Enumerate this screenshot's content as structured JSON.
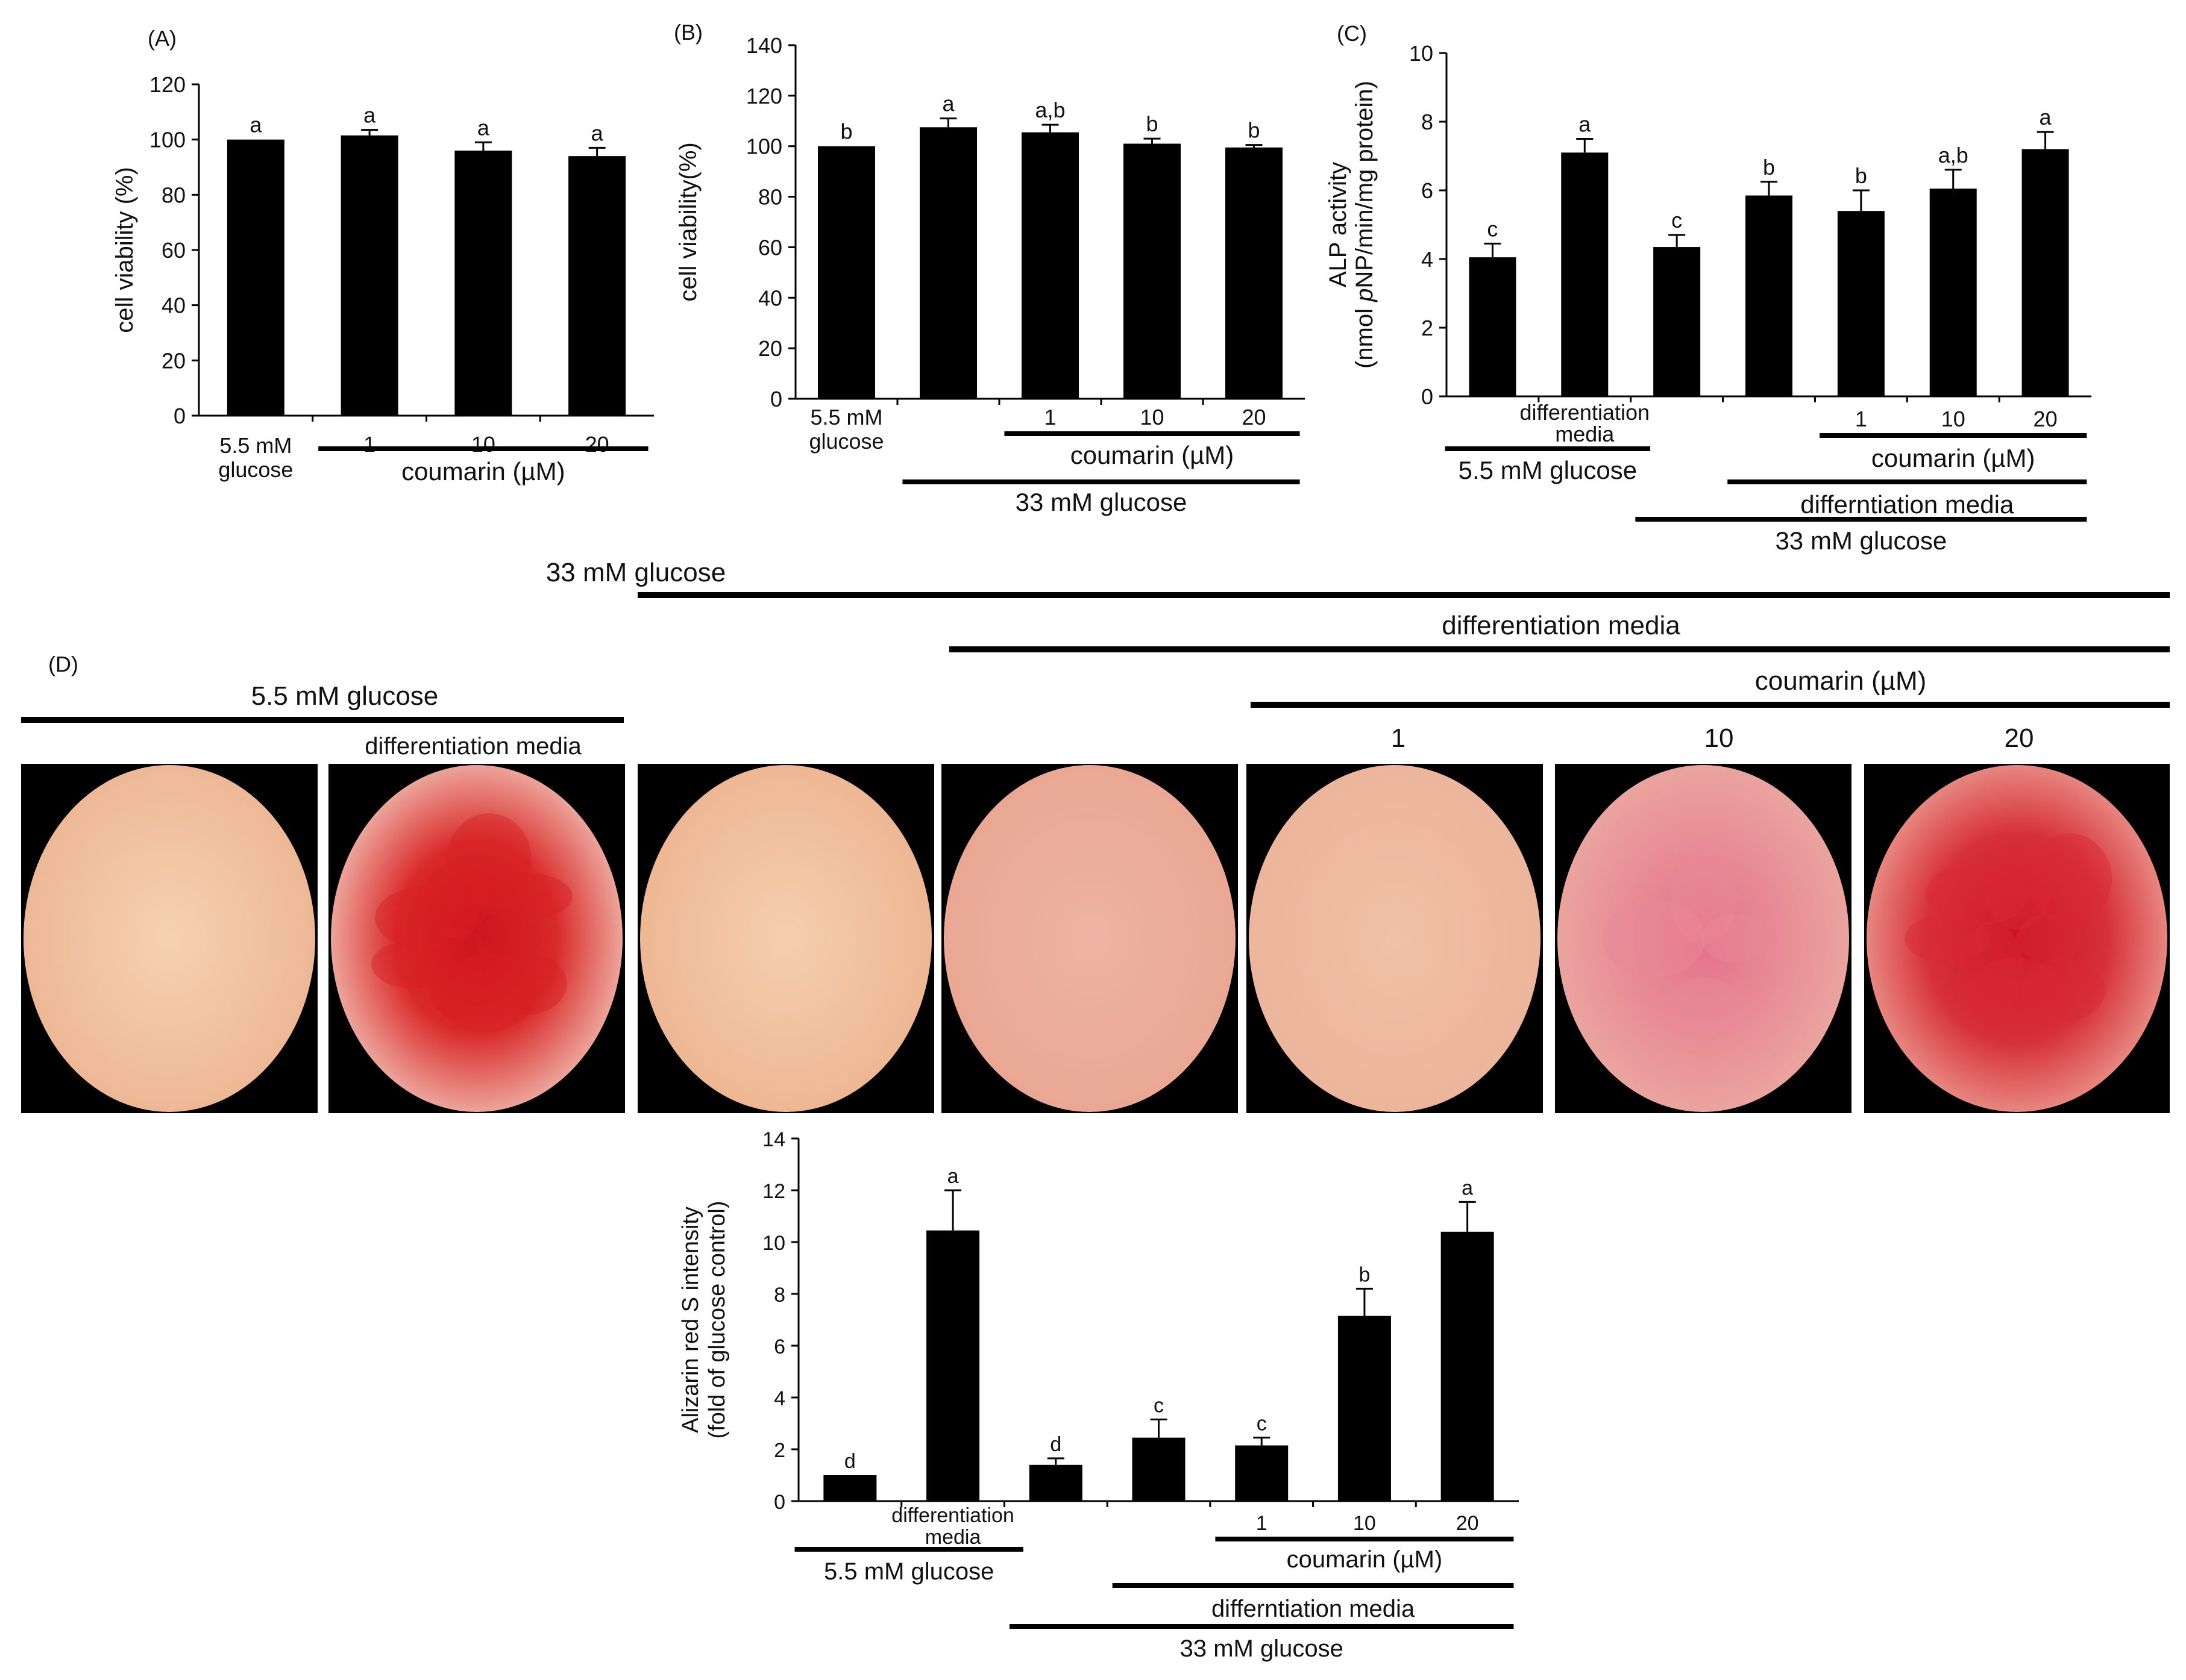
{
  "panels": {
    "A": "(A)",
    "B": "(B)",
    "C": "(C)",
    "D": "(D)"
  },
  "chart_data": [
    {
      "id": "A",
      "type": "bar",
      "ylabel": "cell viability (%)",
      "ylim": [
        0,
        120
      ],
      "yticks": [
        0,
        20,
        40,
        60,
        80,
        100,
        120
      ],
      "categories": [
        "5.5 mM glucose",
        "1",
        "10",
        "20"
      ],
      "values": [
        100,
        101.5,
        96,
        94
      ],
      "errors": [
        0,
        2,
        3,
        3
      ],
      "letters": [
        "a",
        "a",
        "a",
        "a"
      ],
      "brackets": [
        {
          "label": "coumarin (µM)",
          "from": 1,
          "to": 3
        }
      ]
    },
    {
      "id": "B",
      "type": "bar",
      "ylabel": "cell viability(%)",
      "ylim": [
        0,
        140
      ],
      "yticks": [
        0,
        20,
        40,
        60,
        80,
        100,
        120,
        140
      ],
      "categories": [
        "5.5 mM glucose",
        "",
        "1",
        "10",
        "20"
      ],
      "values": [
        100,
        107.5,
        105.5,
        101,
        99.5
      ],
      "errors": [
        0,
        3.5,
        3,
        2,
        1
      ],
      "letters": [
        "b",
        "a",
        "a,b",
        "b",
        "b"
      ],
      "brackets": [
        {
          "label": "coumarin (µM)",
          "from": 2,
          "to": 4
        },
        {
          "label": "33 mM glucose",
          "from": 1,
          "to": 4
        }
      ]
    },
    {
      "id": "C",
      "type": "bar",
      "ylabel": "ALP activity (nmol pNP/min/mg protein)",
      "ylabel_line1": "ALP activity",
      "ylabel_line2_pre": "(nmol ",
      "ylabel_line2_italic": "p",
      "ylabel_line2_post": "NP/min/mg protein)",
      "ylim": [
        0,
        10
      ],
      "yticks": [
        0,
        2,
        4,
        6,
        8,
        10
      ],
      "categories": [
        "",
        "differentiation media",
        "",
        "",
        "1",
        "10",
        "20"
      ],
      "values": [
        4.05,
        7.1,
        4.35,
        5.85,
        5.4,
        6.05,
        7.2
      ],
      "errors": [
        0.4,
        0.4,
        0.35,
        0.4,
        0.6,
        0.55,
        0.5
      ],
      "letters": [
        "c",
        "a",
        "c",
        "b",
        "b",
        "a,b",
        "a"
      ],
      "brackets": [
        {
          "label": "5.5 mM glucose",
          "from": 0,
          "to": 1
        },
        {
          "label": "coumarin (µM)",
          "from": 4,
          "to": 6
        },
        {
          "label": "differntiation media",
          "from": 3,
          "to": 6
        },
        {
          "label": "33 mM glucose",
          "from": 2,
          "to": 6
        }
      ]
    },
    {
      "id": "D",
      "type": "bar",
      "ylabel": "Alizarin red S intensity (fold of glucose control)",
      "ylabel_line1": "Alizarin red S intensity",
      "ylabel_line2": "(fold of glucose control)",
      "ylim": [
        0,
        14
      ],
      "yticks": [
        0,
        2,
        4,
        6,
        8,
        10,
        12,
        14
      ],
      "categories": [
        "",
        "differentiation media",
        "",
        "",
        "1",
        "10",
        "20"
      ],
      "values": [
        1,
        10.45,
        1.4,
        2.45,
        2.15,
        7.15,
        10.4
      ],
      "errors": [
        0,
        1.55,
        0.25,
        0.7,
        0.3,
        1.05,
        1.15
      ],
      "letters": [
        "d",
        "a",
        "d",
        "c",
        "c",
        "b",
        "a"
      ],
      "brackets": [
        {
          "label": "5.5 mM glucose",
          "from": 0,
          "to": 1
        },
        {
          "label": "coumarin (µM)",
          "from": 4,
          "to": 6
        },
        {
          "label": "differntiation media",
          "from": 3,
          "to": 6
        },
        {
          "label": "33 mM glucose",
          "from": 2,
          "to": 6
        }
      ]
    }
  ],
  "stain_panel": {
    "headers": {
      "glucose_low": "5.5 mM glucose",
      "glucose_high": "33 mM glucose",
      "diff_media_low": "differentiation media",
      "diff_media_high": "differentiation media",
      "coumarin": "coumarin (µM)",
      "dose_1": "1",
      "dose_10": "10",
      "dose_20": "20"
    },
    "wells": [
      {
        "name": "5.5 mM glucose",
        "stain": 0.02,
        "color": "#f2c7a6"
      },
      {
        "name": "5.5 mM glucose + differentiation media",
        "stain": 0.85,
        "color": "#d81f24"
      },
      {
        "name": "33 mM glucose",
        "stain": 0.05,
        "color": "#f0c4a2"
      },
      {
        "name": "33 mM glucose + differentiation media",
        "stain": 0.2,
        "color": "#eda89a"
      },
      {
        "name": "coumarin 1 µM",
        "stain": 0.15,
        "color": "#f0b8a0"
      },
      {
        "name": "coumarin 10 µM",
        "stain": 0.4,
        "color": "#e98a9a"
      },
      {
        "name": "coumarin 20 µM",
        "stain": 0.8,
        "color": "#d9283a"
      }
    ]
  }
}
